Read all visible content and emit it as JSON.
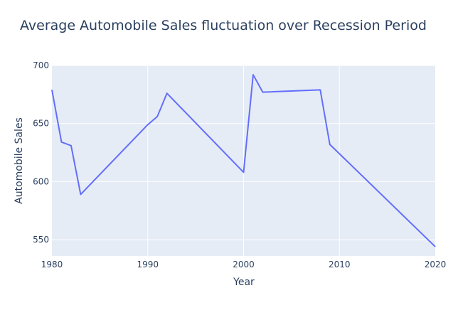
{
  "chart_data": {
    "type": "line",
    "title": "Average Automobile Sales fluctuation over Recession Period",
    "xlabel": "Year",
    "ylabel": "Automobile Sales",
    "xlim": [
      1980,
      2020
    ],
    "ylim": [
      536,
      700
    ],
    "x_ticks": [
      1980,
      1990,
      2000,
      2010,
      2020
    ],
    "y_ticks": [
      550,
      600,
      650,
      700
    ],
    "grid": true,
    "colors": {
      "plot_bg": "#e5ecf6",
      "line": "#636efa",
      "text": "#2a3f5f"
    },
    "series": [
      {
        "x": [
          1980,
          1981,
          1982,
          1983,
          1990,
          1991,
          1992,
          2000,
          2001,
          2002,
          2008,
          2009,
          2020
        ],
        "y": [
          679,
          634,
          631,
          589,
          649,
          656,
          676,
          608,
          692,
          677,
          679,
          632,
          544
        ]
      }
    ]
  }
}
